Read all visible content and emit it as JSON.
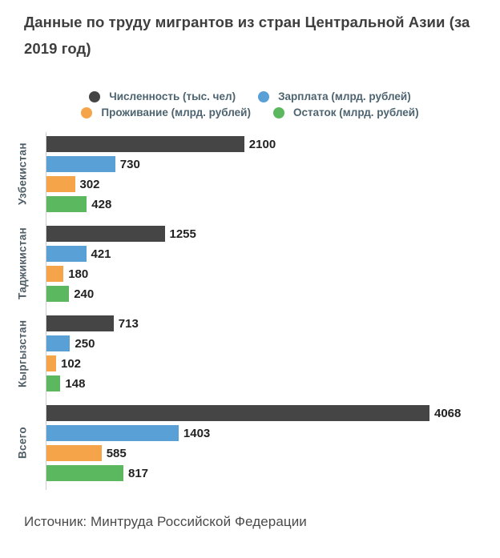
{
  "page": {
    "title": "Данные по труду мигрантов из стран Центральной Азии (за 2019 год)",
    "source": "Источник: Минтруда Российской Федерации"
  },
  "colors": {
    "background": "#ffffff",
    "title_text": "#3e3e3e",
    "legend_text": "#4d6470",
    "category_text": "#4e5d66",
    "value_text": "#222222",
    "axis_line": "#cfcfcf",
    "series_dark": "#454545",
    "series_blue": "#58a0d6",
    "series_orange": "#f6a44a",
    "series_green": "#5cb85e"
  },
  "chart_data": {
    "type": "bar",
    "orientation": "horizontal",
    "title": "Данные по труду мигрантов из стран Центральной Азии (за 2019 год)",
    "categories": [
      "Узбекистан",
      "Таджикистан",
      "Кыргызстан",
      "Всего"
    ],
    "series": [
      {
        "name": "Численность (тыс. чел)",
        "color": "#454545",
        "values": [
          2100,
          1255,
          713,
          4068
        ]
      },
      {
        "name": "Зарплата (млрд. рублей)",
        "color": "#58a0d6",
        "values": [
          730,
          421,
          250,
          1403
        ]
      },
      {
        "name": "Проживание (млрд. рублей)",
        "color": "#f6a44a",
        "values": [
          302,
          180,
          102,
          585
        ]
      },
      {
        "name": "Остаток (млрд. рублей)",
        "color": "#5cb85e",
        "values": [
          428,
          240,
          148,
          817
        ]
      }
    ],
    "xlim": [
      0,
      4068
    ],
    "grid": false,
    "value_labels": true,
    "legend_position": "top",
    "legend_rows": [
      [
        0,
        1
      ],
      [
        2,
        3
      ]
    ],
    "source": "Источник: Минтруда Российской Федерации"
  }
}
